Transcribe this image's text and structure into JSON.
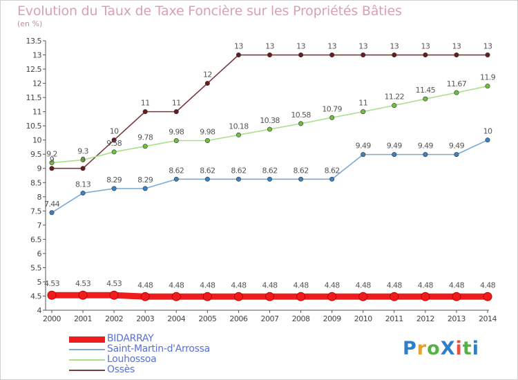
{
  "title": "Evolution du Taux de Taxe Foncière sur les Propriétés Bâties",
  "subtitle": "(en %)",
  "logo": {
    "text": "ProXiti",
    "colors": [
      "#2f7fc8",
      "#e8a030",
      "#58b048",
      "#2f7fc8",
      "#e85040",
      "#58b048",
      "#2f7fc8"
    ]
  },
  "chart_data": {
    "type": "line",
    "title": "Evolution du Taux de Taxe Foncière sur les Propriétés Bâties",
    "ylabel": "(en %)",
    "xlabel": "",
    "ylim": [
      4,
      13.5
    ],
    "yticks": [
      "4",
      "4.5",
      "5",
      "5.5",
      "6",
      "6.5",
      "7",
      "7.5",
      "8",
      "8.5",
      "9",
      "9.5",
      "10",
      "10.5",
      "11",
      "11.5",
      "12",
      "12.5",
      "13",
      "13.5"
    ],
    "x": [
      "2000",
      "2001",
      "2002",
      "2003",
      "2004",
      "2005",
      "2006",
      "2007",
      "2008",
      "2009",
      "2010",
      "2011",
      "2012",
      "2013",
      "2014"
    ],
    "grid": false,
    "legend_position": "bottom-left",
    "series": [
      {
        "name": "BIDARRAY",
        "color": "#ee1c1c",
        "marker_color": "#ee1c1c",
        "values": [
          4.53,
          4.53,
          4.53,
          4.48,
          4.48,
          4.48,
          4.48,
          4.48,
          4.48,
          4.48,
          4.48,
          4.48,
          4.48,
          4.48,
          4.48
        ],
        "labels": [
          "4.53",
          "4.53",
          "4.53",
          "4.48",
          "4.48",
          "4.48",
          "4.48",
          "4.48",
          "4.48",
          "4.48",
          "4.48",
          "4.48",
          "4.48",
          "4.48",
          "4.48"
        ]
      },
      {
        "name": "Saint-Martin-d'Arrossa",
        "color": "#78a8d8",
        "marker_color": "#3a82c4",
        "values": [
          7.44,
          8.13,
          8.29,
          8.29,
          8.62,
          8.62,
          8.62,
          8.62,
          8.62,
          8.62,
          9.49,
          9.49,
          9.49,
          9.49,
          10
        ],
        "labels": [
          "7.44",
          "8.13",
          "8.29",
          "8.29",
          "8.62",
          "8.62",
          "8.62",
          "8.62",
          "8.62",
          "8.62",
          "9.49",
          "9.49",
          "9.49",
          "9.49",
          "10"
        ]
      },
      {
        "name": "Louhossoa",
        "color": "#a8e088",
        "marker_color": "#70c040",
        "values": [
          9.2,
          9.3,
          9.58,
          9.78,
          9.98,
          9.98,
          10.18,
          10.38,
          10.58,
          10.79,
          11,
          11.22,
          11.45,
          11.67,
          11.9
        ],
        "labels": [
          "9.2",
          "9.3",
          "9.58",
          "9.78",
          "9.98",
          "9.98",
          "10.18",
          "10.38",
          "10.58",
          "10.79",
          "11",
          "11.22",
          "11.45",
          "11.67",
          "11.9"
        ]
      },
      {
        "name": "Ossès",
        "color": "#7a3a3a",
        "marker_color": "#6a1c1c",
        "values": [
          9,
          9,
          10,
          11,
          11,
          12,
          13,
          13,
          13,
          13,
          13,
          13,
          13,
          13,
          13
        ],
        "labels": [
          "9",
          "9",
          "10",
          "11",
          "11",
          "12",
          "13",
          "13",
          "13",
          "13",
          "13",
          "13",
          "13",
          "13",
          "13"
        ]
      }
    ]
  }
}
